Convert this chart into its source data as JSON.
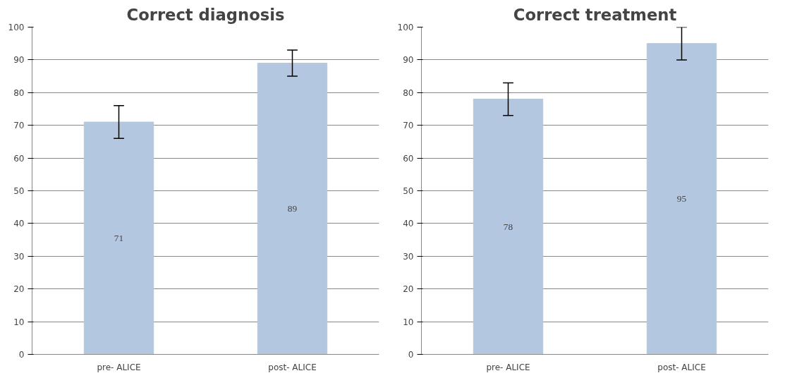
{
  "chart_data": [
    {
      "type": "bar",
      "title": "Correct diagnosis",
      "categories": [
        "pre- ALICE",
        "post- ALICE"
      ],
      "values": [
        71,
        89
      ],
      "errors": [
        5,
        4
      ],
      "colors": [
        "#b4c7e0",
        "#b4c7e0"
      ],
      "data_labels": true,
      "ylim": [
        0,
        100
      ],
      "yticks": [
        0,
        10,
        20,
        30,
        40,
        50,
        60,
        70,
        80,
        90,
        100
      ],
      "grid": "y"
    },
    {
      "type": "bar",
      "title": "Correct treatment",
      "categories": [
        "pre- ALICE",
        "post- ALICE"
      ],
      "values": [
        78,
        95
      ],
      "errors": [
        5,
        5
      ],
      "colors": [
        "#b4c7e0",
        "#b4c7e0"
      ],
      "data_labels": true,
      "ylim": [
        0,
        100
      ],
      "yticks": [
        0,
        10,
        20,
        30,
        40,
        50,
        60,
        70,
        80,
        90,
        100
      ],
      "grid": "y"
    }
  ]
}
